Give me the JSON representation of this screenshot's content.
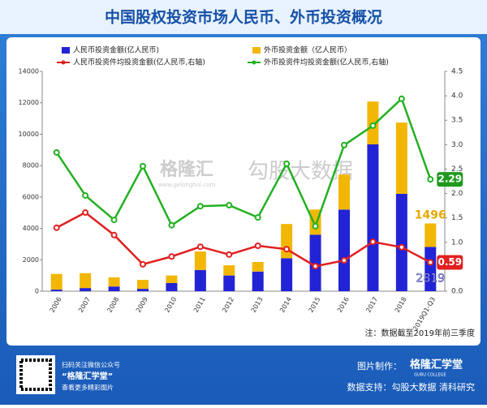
{
  "chart_data": {
    "type": "combo",
    "title": "中国股权投资市场人民币、外币投资概况",
    "categories": [
      "2006",
      "2007",
      "2008",
      "2009",
      "2010",
      "2011",
      "2012",
      "2013",
      "2014",
      "2015",
      "2016",
      "2017",
      "2018",
      "2019Q1-Q3"
    ],
    "series": [
      {
        "name": "人民币投资金额(亿人民币)",
        "type": "bar",
        "color": "#2323d6",
        "values": [
          100,
          200,
          300,
          150,
          520,
          1350,
          1000,
          1250,
          2100,
          3600,
          5200,
          9350,
          6200,
          2819
        ]
      },
      {
        "name": "外币投资金额（亿人民币）",
        "type": "bar",
        "color": "#f2b705",
        "values": [
          1000,
          950,
          580,
          570,
          480,
          1180,
          650,
          610,
          2180,
          1600,
          2230,
          2730,
          4540,
          1496
        ]
      },
      {
        "name": "人民币投资件均投资金额(亿人民币,右轴)",
        "type": "line",
        "axis": "y2",
        "color": "#e02020",
        "values": [
          1.3,
          1.61,
          1.15,
          0.55,
          0.71,
          0.91,
          0.75,
          0.93,
          0.86,
          0.51,
          0.63,
          1.01,
          0.9,
          0.59
        ]
      },
      {
        "name": "外币投资件均投资金额(亿人民币,右轴)",
        "type": "line",
        "axis": "y2",
        "color": "#22b022",
        "values": [
          2.84,
          1.96,
          1.46,
          2.56,
          1.35,
          1.74,
          1.76,
          1.51,
          2.61,
          1.33,
          2.99,
          3.39,
          3.94,
          2.29
        ]
      }
    ],
    "ylim": [
      0,
      14000
    ],
    "yticks": [
      0,
      2000,
      4000,
      6000,
      8000,
      10000,
      12000,
      14000
    ],
    "y2lim": [
      0,
      4.5
    ],
    "y2ticks": [
      {
        "value": 0,
        "label": "0.0"
      },
      0.5,
      {
        "value": 1,
        "label": "1.0"
      },
      1.5,
      {
        "value": 2,
        "label": "2.0"
      },
      2.5,
      {
        "value": 3,
        "label": "3.0"
      },
      3.5,
      {
        "value": 4,
        "label": "4.0"
      },
      4.5
    ],
    "note": "注：数据截至2019年前三季度",
    "watermark": [
      "格隆汇",
      "www.gelonghui.com",
      "勾股大数据"
    ]
  },
  "footer": {
    "qr_lines": [
      "扫码关注微信公众号",
      "“格隆汇学堂”",
      "查看更多精彩图片"
    ],
    "made_by": "图片制作：",
    "brand": "格隆汇学堂",
    "brand_en": "GURU COLLEGE",
    "source": "数据支持：勾股大数据  清科研究"
  }
}
